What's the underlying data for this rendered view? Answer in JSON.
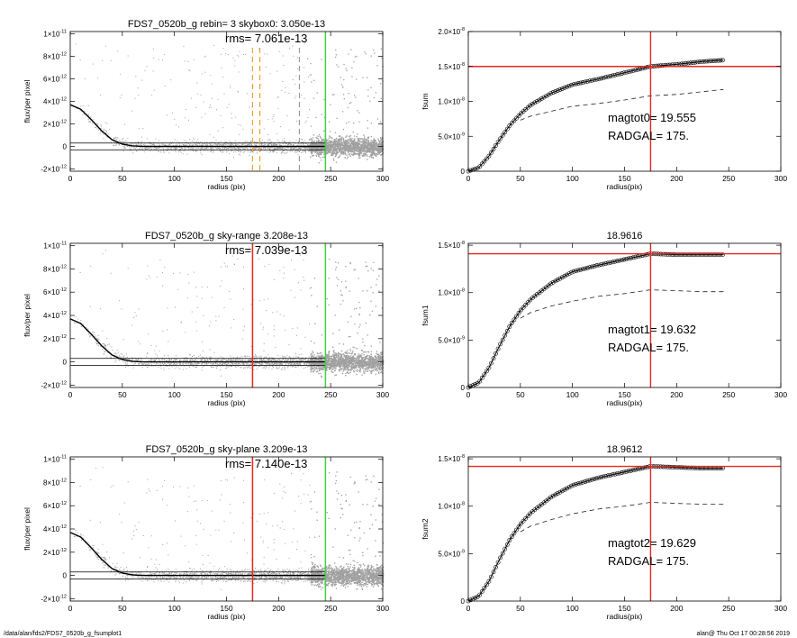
{
  "footer": {
    "path": "/data/alan/fds2/FDS7_0520b_g_fsumplot1",
    "stamp": "alan@  Thu Oct 17 00:28:56 2019"
  },
  "colors": {
    "red": "#e8261e",
    "green": "#3fd13a",
    "orange": "#f0a030",
    "gray": "#9a9a9a",
    "points": "#a0a0a0"
  },
  "chart_data": [
    {
      "type": "scatter",
      "title": "FDS7_0520b_g rebin= 3    skybox0:  3.050e-13",
      "annotation": "rms= 7.061e-13",
      "xlabel": "radius (pix)",
      "ylabel": "flux/per pixel",
      "xlim": [
        0,
        300
      ],
      "ylim": [
        -2.2e-12,
        1.02e-11
      ],
      "xticks": [
        0,
        50,
        100,
        150,
        200,
        250,
        300
      ],
      "yticks": [
        {
          "v": 1e-11,
          "label": "1×10",
          "exp": "-11"
        },
        {
          "v": 8e-12,
          "label": "8×10",
          "exp": "-12"
        },
        {
          "v": 6e-12,
          "label": "6×10",
          "exp": "-12"
        },
        {
          "v": 4e-12,
          "label": "4×10",
          "exp": "-12"
        },
        {
          "v": 2e-12,
          "label": "2×10",
          "exp": "-12"
        },
        {
          "v": 0,
          "label": "0",
          "exp": ""
        },
        {
          "v": -2e-12,
          "label": "-2×10",
          "exp": "-12"
        }
      ],
      "profile": {
        "x": [
          0,
          10,
          20,
          30,
          40,
          50,
          60,
          70,
          80,
          100,
          150,
          200,
          245
        ],
        "y": [
          3.7e-12,
          3.3e-12,
          2.4e-12,
          1.4e-12,
          6e-13,
          2e-13,
          5e-14,
          0,
          0,
          0,
          0,
          0,
          0
        ]
      },
      "sky_band": [
        -3e-13,
        3e-13
      ],
      "vlines": [
        {
          "x": 175,
          "color": "orange",
          "style": "dash",
          "partial": true
        },
        {
          "x": 182,
          "color": "orange",
          "style": "dash",
          "partial": true
        },
        {
          "x": 220,
          "color": "gray",
          "style": "dash",
          "partial": true
        },
        {
          "x": 245,
          "color": "green",
          "style": "solid"
        }
      ]
    },
    {
      "type": "line",
      "title": "",
      "xlabel": "radius(pix)",
      "ylabel": "fsum",
      "xlim": [
        0,
        300
      ],
      "ylim": [
        0,
        2e-08
      ],
      "xticks": [
        0,
        50,
        100,
        150,
        200,
        250,
        300
      ],
      "yticks": [
        {
          "v": 2e-08,
          "label": "2.0×10",
          "exp": "-8"
        },
        {
          "v": 1.5e-08,
          "label": "1.5×10",
          "exp": "-8"
        },
        {
          "v": 1e-08,
          "label": "1.0×10",
          "exp": "-8"
        },
        {
          "v": 5e-09,
          "label": "5.0×10",
          "exp": "-9"
        },
        {
          "v": 0,
          "label": "0",
          "exp": ""
        }
      ],
      "series": [
        {
          "x": [
            0,
            10,
            20,
            30,
            40,
            50,
            60,
            80,
            100,
            125,
            150,
            175,
            200,
            225,
            245
          ],
          "y": [
            0,
            5e-10,
            2.2e-09,
            4.5e-09,
            6.6e-09,
            8.2e-09,
            9.5e-09,
            1.12e-08,
            1.24e-08,
            1.32e-08,
            1.41e-08,
            1.5e-08,
            1.53e-08,
            1.57e-08,
            1.59e-08
          ],
          "marker": "circle"
        },
        {
          "x": [
            50,
            60,
            80,
            100,
            125,
            150,
            175,
            200,
            225,
            245
          ],
          "y": [
            7.3e-09,
            7.9e-09,
            8.6e-09,
            9.3e-09,
            9.7e-09,
            1.02e-08,
            1.08e-08,
            1.1e-08,
            1.14e-08,
            1.17e-08
          ],
          "style": "dash"
        }
      ],
      "hline": 1.5e-08,
      "vline": 175,
      "annotations": [
        "magtot0=  19.555",
        "RADGAL=    175."
      ]
    },
    {
      "type": "scatter",
      "title": "FDS7_0520b_g sky-range  3.208e-13",
      "annotation": "rms= 7.039e-13",
      "xlabel": "radius (pix)",
      "ylabel": "flux/per pixel",
      "xlim": [
        0,
        300
      ],
      "ylim": [
        -2.2e-12,
        1.02e-11
      ],
      "xticks": [
        0,
        50,
        100,
        150,
        200,
        250,
        300
      ],
      "yticks": [
        {
          "v": 1e-11,
          "label": "1×10",
          "exp": "-11"
        },
        {
          "v": 8e-12,
          "label": "8×10",
          "exp": "-12"
        },
        {
          "v": 6e-12,
          "label": "6×10",
          "exp": "-12"
        },
        {
          "v": 4e-12,
          "label": "4×10",
          "exp": "-12"
        },
        {
          "v": 2e-12,
          "label": "2×10",
          "exp": "-12"
        },
        {
          "v": 0,
          "label": "0",
          "exp": ""
        },
        {
          "v": -2e-12,
          "label": "-2×10",
          "exp": "-12"
        }
      ],
      "profile": {
        "x": [
          0,
          10,
          20,
          30,
          40,
          50,
          60,
          70,
          80,
          100,
          150,
          200,
          245
        ],
        "y": [
          3.7e-12,
          3.3e-12,
          2.4e-12,
          1.4e-12,
          6e-13,
          2e-13,
          5e-14,
          0,
          0,
          0,
          0,
          0,
          0
        ]
      },
      "sky_band": [
        -3e-13,
        3e-13
      ],
      "vlines": [
        {
          "x": 175,
          "color": "red",
          "style": "solid"
        },
        {
          "x": 245,
          "color": "green",
          "style": "solid"
        }
      ]
    },
    {
      "type": "line",
      "title": "18.9616",
      "xlabel": "radius(pix)",
      "ylabel": "fsum1",
      "xlim": [
        0,
        300
      ],
      "ylim": [
        0,
        1.52e-08
      ],
      "xticks": [
        0,
        50,
        100,
        150,
        200,
        250,
        300
      ],
      "yticks": [
        {
          "v": 1.5e-08,
          "label": "1.5×10",
          "exp": "-8"
        },
        {
          "v": 1e-08,
          "label": "1.0×10",
          "exp": "-8"
        },
        {
          "v": 5e-09,
          "label": "5.0×10",
          "exp": "-9"
        },
        {
          "v": 0,
          "label": "0",
          "exp": ""
        }
      ],
      "series": [
        {
          "x": [
            0,
            10,
            20,
            30,
            40,
            50,
            60,
            80,
            100,
            125,
            150,
            175,
            200,
            225,
            245
          ],
          "y": [
            0,
            5e-10,
            2.1e-09,
            4.4e-09,
            6.5e-09,
            8.1e-09,
            9.3e-09,
            1.1e-08,
            1.22e-08,
            1.29e-08,
            1.35e-08,
            1.41e-08,
            1.4e-08,
            1.4e-08,
            1.4e-08
          ],
          "marker": "circle"
        },
        {
          "x": [
            50,
            60,
            80,
            100,
            125,
            150,
            175,
            200,
            225,
            245
          ],
          "y": [
            7.3e-09,
            7.9e-09,
            8.6e-09,
            9.1e-09,
            9.6e-09,
            9.9e-09,
            1.03e-08,
            1.02e-08,
            1.01e-08,
            1.01e-08
          ],
          "style": "dash"
        }
      ],
      "hline": 1.41e-08,
      "vline": 175,
      "annotations": [
        "magtot1=  19.632",
        "RADGAL=    175."
      ]
    },
    {
      "type": "scatter",
      "title": "FDS7_0520b_g sky-plane  3.209e-13",
      "annotation": "rms= 7.140e-13",
      "xlabel": "radius (pix)",
      "ylabel": "flux/per pixel",
      "xlim": [
        0,
        300
      ],
      "ylim": [
        -2.2e-12,
        1.02e-11
      ],
      "xticks": [
        0,
        50,
        100,
        150,
        200,
        250,
        300
      ],
      "yticks": [
        {
          "v": 1e-11,
          "label": "1×10",
          "exp": "-11"
        },
        {
          "v": 8e-12,
          "label": "8×10",
          "exp": "-12"
        },
        {
          "v": 6e-12,
          "label": "6×10",
          "exp": "-12"
        },
        {
          "v": 4e-12,
          "label": "4×10",
          "exp": "-12"
        },
        {
          "v": 2e-12,
          "label": "2×10",
          "exp": "-12"
        },
        {
          "v": 0,
          "label": "0",
          "exp": ""
        },
        {
          "v": -2e-12,
          "label": "-2×10",
          "exp": "-12"
        }
      ],
      "profile": {
        "x": [
          0,
          10,
          20,
          30,
          40,
          50,
          60,
          70,
          80,
          100,
          150,
          200,
          245
        ],
        "y": [
          3.7e-12,
          3.3e-12,
          2.4e-12,
          1.4e-12,
          6e-13,
          2e-13,
          5e-14,
          0,
          0,
          0,
          0,
          0,
          0
        ]
      },
      "sky_band": [
        -3e-13,
        3e-13
      ],
      "vlines": [
        {
          "x": 175,
          "color": "red",
          "style": "solid"
        },
        {
          "x": 245,
          "color": "green",
          "style": "solid"
        }
      ]
    },
    {
      "type": "line",
      "title": "18.9612",
      "xlabel": "radius(pix)",
      "ylabel": "fsum2",
      "xlim": [
        0,
        300
      ],
      "ylim": [
        0,
        1.52e-08
      ],
      "xticks": [
        0,
        50,
        100,
        150,
        200,
        250,
        300
      ],
      "yticks": [
        {
          "v": 1.5e-08,
          "label": "1.5×10",
          "exp": "-8"
        },
        {
          "v": 1e-08,
          "label": "1.0×10",
          "exp": "-8"
        },
        {
          "v": 5e-09,
          "label": "5.0×10",
          "exp": "-9"
        },
        {
          "v": 0,
          "label": "0",
          "exp": ""
        }
      ],
      "series": [
        {
          "x": [
            0,
            10,
            20,
            30,
            40,
            50,
            60,
            80,
            100,
            125,
            150,
            175,
            200,
            225,
            245
          ],
          "y": [
            0,
            5e-10,
            2.1e-09,
            4.4e-09,
            6.5e-09,
            8.1e-09,
            9.3e-09,
            1.1e-08,
            1.22e-08,
            1.3e-08,
            1.36e-08,
            1.42e-08,
            1.41e-08,
            1.4e-08,
            1.4e-08
          ],
          "marker": "circle"
        },
        {
          "x": [
            50,
            60,
            80,
            100,
            125,
            150,
            175,
            200,
            225,
            245
          ],
          "y": [
            7.3e-09,
            7.9e-09,
            8.6e-09,
            9.2e-09,
            9.7e-09,
            1e-08,
            1.04e-08,
            1.03e-08,
            1.02e-08,
            1.02e-08
          ],
          "style": "dash"
        }
      ],
      "hline": 1.42e-08,
      "vline": 175,
      "annotations": [
        "magtot2=  19.629",
        "RADGAL=    175."
      ]
    }
  ]
}
